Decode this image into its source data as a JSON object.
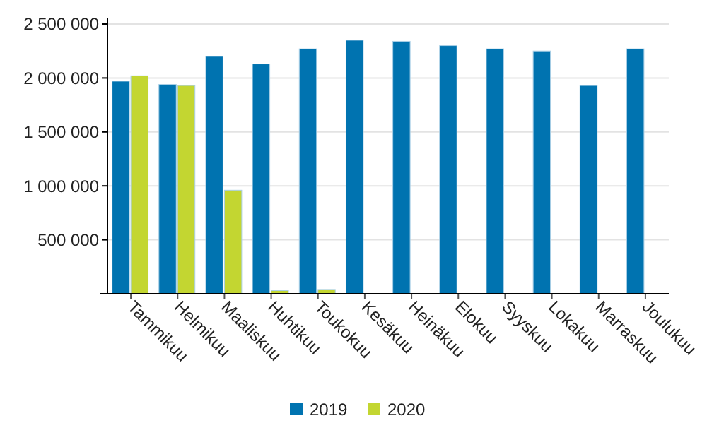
{
  "chart_data": {
    "type": "bar",
    "categories": [
      "Tammikuu",
      "Helmikuu",
      "Maaliskuu",
      "Huhtikuu",
      "Toukokuu",
      "Kesäkuu",
      "Heinäkuu",
      "Elokuu",
      "Syyskuu",
      "Lokakuu",
      "Marraskuu",
      "Joulukuu"
    ],
    "series": [
      {
        "name": "2019",
        "color": "#0073b0",
        "values": [
          1970000,
          1940000,
          2200000,
          2130000,
          2270000,
          2350000,
          2340000,
          2300000,
          2270000,
          2250000,
          1930000,
          2270000
        ]
      },
      {
        "name": "2020",
        "color": "#c3d631",
        "values": [
          2020000,
          1930000,
          960000,
          30000,
          40000,
          null,
          null,
          null,
          null,
          null,
          null,
          null
        ]
      }
    ],
    "ylim": [
      0,
      2500000
    ],
    "yticks": [
      {
        "value": 500000,
        "label": "500 000"
      },
      {
        "value": 1000000,
        "label": "1 000 000"
      },
      {
        "value": 1500000,
        "label": "1 500 000"
      },
      {
        "value": 2000000,
        "label": "2 000 000"
      },
      {
        "value": 2500000,
        "label": "2 500 000"
      }
    ],
    "grid": "y",
    "legend": "bottom"
  }
}
